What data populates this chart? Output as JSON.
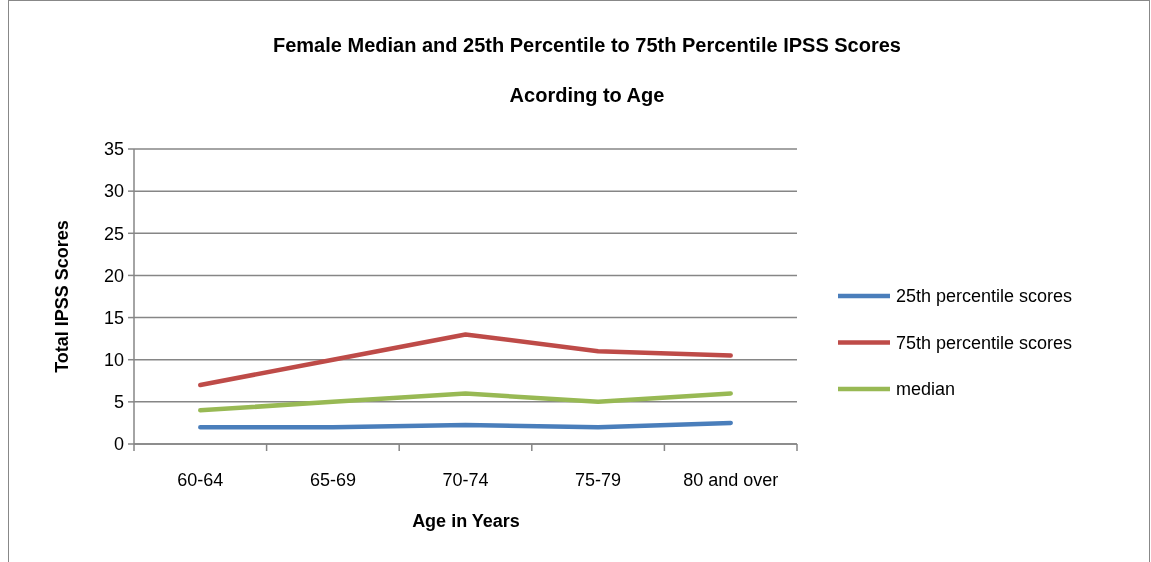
{
  "chart_data": {
    "type": "line",
    "title": "Female Median and 25th Percentile to 75th Percentile IPSS Scores",
    "subtitle": "Acording to Age",
    "xlabel": "Age in Years",
    "ylabel": "Total IPSS Scores",
    "categories": [
      "60-64",
      "65-69",
      "70-74",
      "75-79",
      "80 and over"
    ],
    "series": [
      {
        "name": "25th percentile scores",
        "color": "#4a7ebb",
        "values": [
          2,
          2,
          2.25,
          2,
          2.5
        ]
      },
      {
        "name": "75th percentile scores",
        "color": "#be4b48",
        "values": [
          7,
          10,
          13,
          11,
          10.5
        ]
      },
      {
        "name": "median",
        "color": "#98b954",
        "values": [
          4,
          5,
          6,
          5,
          6
        ]
      }
    ],
    "ylim": [
      0,
      35
    ],
    "yticks": [
      0,
      5,
      10,
      15,
      20,
      25,
      30,
      35
    ],
    "grid": "y",
    "legend": "right",
    "marker": "none",
    "line_style": "solid"
  }
}
